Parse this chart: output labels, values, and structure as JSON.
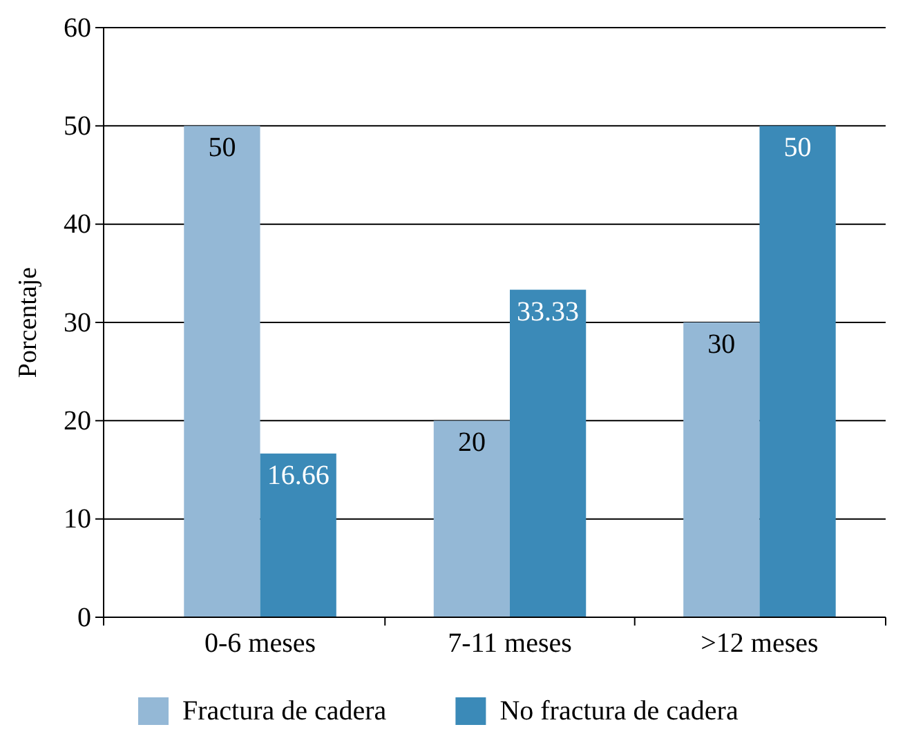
{
  "chart_data": {
    "type": "bar",
    "ylabel": "Porcentaje",
    "categories": [
      "0-6 meses",
      "7-11 meses",
      ">12 meses"
    ],
    "series": [
      {
        "name": "Fractura de cadera",
        "color": "#94b8d6",
        "values": [
          50,
          20,
          30
        ]
      },
      {
        "name": "No fractura de cadera",
        "color": "#3b8ab8",
        "values": [
          16.66,
          33.33,
          50
        ]
      }
    ],
    "ylim": [
      0,
      60
    ],
    "yticks": [
      0,
      10,
      20,
      30,
      40,
      50,
      60
    ],
    "grid": "y",
    "legend": "bottom",
    "data_labels": true
  }
}
